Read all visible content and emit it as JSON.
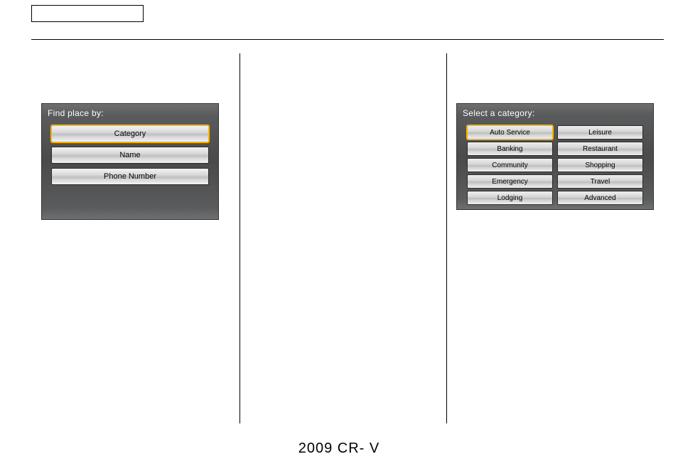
{
  "footer": "2009  CR- V",
  "screen1": {
    "title": "Find place by:",
    "options": [
      {
        "label": "Category",
        "selected": true
      },
      {
        "label": "Name",
        "selected": false
      },
      {
        "label": "Phone Number",
        "selected": false
      }
    ]
  },
  "screen2": {
    "title": "Select a category:",
    "categories": [
      {
        "label": "Auto Service",
        "selected": true
      },
      {
        "label": "Leisure",
        "selected": false
      },
      {
        "label": "Banking",
        "selected": false
      },
      {
        "label": "Restaurant",
        "selected": false
      },
      {
        "label": "Community",
        "selected": false
      },
      {
        "label": "Shopping",
        "selected": false
      },
      {
        "label": "Emergency",
        "selected": false
      },
      {
        "label": "Travel",
        "selected": false
      },
      {
        "label": "Lodging",
        "selected": false
      },
      {
        "label": "Advanced",
        "selected": false
      }
    ]
  },
  "colors": {
    "highlight": "#f5b400",
    "screen_bg_top": "#6e6f70",
    "screen_bg_mid": "#4a4a4b",
    "button_light": "#f2f2f2",
    "button_dark": "#bfbfbf"
  }
}
